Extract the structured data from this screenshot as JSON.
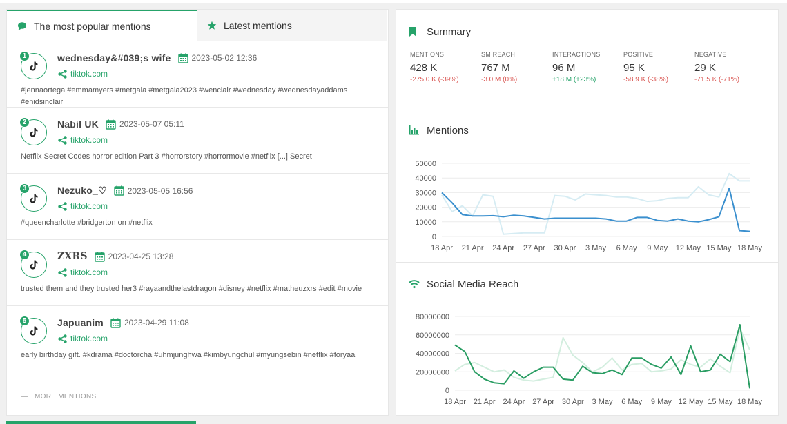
{
  "tabs": [
    {
      "label": "The most popular mentions",
      "active": true
    },
    {
      "label": "Latest mentions",
      "active": false
    }
  ],
  "mentions": [
    {
      "rank": "1",
      "author": "wednesday&#039;s wife",
      "date": "2023-05-02 12:36",
      "source": "tiktok.com",
      "text": "#jennaortega #emmamyers #metgala #metgala2023 #wenclair #wednesday #wednesdayaddams #enidsinclair"
    },
    {
      "rank": "2",
      "author": "Nabil  UK",
      "date": "2023-05-07 05:11",
      "source": "tiktok.com",
      "text": "Netflix Secret Codes horror edition Part 3 #horrorstory #horrormovie #netflix [...] Secret"
    },
    {
      "rank": "3",
      "author": "Nezuko_♡",
      "date": "2023-05-05 16:56",
      "source": "tiktok.com",
      "text": "#queencharlotte #bridgerton on #netflix"
    },
    {
      "rank": "4",
      "author": "ZXRS",
      "date": "2023-04-25 13:28",
      "source": "tiktok.com",
      "text": "trusted them and they trusted her3 #rayaandthelastdragon #disney #netflix #matheuzxrs #edit #movie"
    },
    {
      "rank": "5",
      "author": "Japuanim",
      "date": "2023-04-29 11:08",
      "source": "tiktok.com",
      "text": "early birthday gift. #kdrama #doctorcha #uhmjunghwa #kimbyungchul #myungsebin #netflix #foryaa"
    }
  ],
  "more_label": "MORE MENTIONS",
  "summary": {
    "title": "Summary",
    "metrics": [
      {
        "label": "MENTIONS",
        "value": "428 K",
        "delta": "-275.0 K  (-39%)",
        "positive": false
      },
      {
        "label": "SM REACH",
        "value": "767 M",
        "delta": "-3.0 M  (0%)",
        "positive": false
      },
      {
        "label": "INTERACTIONS",
        "value": "96 M",
        "delta": "+18 M  (+23%)",
        "positive": true
      },
      {
        "label": "POSITIVE",
        "value": "95 K",
        "delta": "-58.9 K  (-38%)",
        "positive": false
      },
      {
        "label": "NEGATIVE",
        "value": "29 K",
        "delta": "-71.5 K  (-71%)",
        "positive": false
      }
    ]
  },
  "colors": {
    "accent": "#26a36a",
    "mentions_line": "#3a8fce",
    "mentions_prev": "#d6ecf3",
    "reach_line": "#2a9d63",
    "reach_prev": "#d3eedf"
  },
  "chart_data": [
    {
      "type": "line",
      "title": "Mentions",
      "categories": [
        "18 Apr",
        "19 Apr",
        "20 Apr",
        "21 Apr",
        "22 Apr",
        "23 Apr",
        "24 Apr",
        "25 Apr",
        "26 Apr",
        "27 Apr",
        "28 Apr",
        "29 Apr",
        "30 Apr",
        "1 May",
        "2 May",
        "3 May",
        "4 May",
        "5 May",
        "6 May",
        "7 May",
        "8 May",
        "9 May",
        "10 May",
        "11 May",
        "12 May",
        "13 May",
        "14 May",
        "15 May",
        "16 May",
        "17 May",
        "18 May"
      ],
      "xticks": [
        "18 Apr",
        "21 Apr",
        "24 Apr",
        "27 Apr",
        "30 Apr",
        "3 May",
        "6 May",
        "9 May",
        "12 May",
        "15 May",
        "18 May"
      ],
      "yticks": [
        0,
        10000,
        20000,
        30000,
        40000,
        50000
      ],
      "ylim": [
        0,
        50000
      ],
      "series": [
        {
          "values": [
            30000,
            23000,
            15000,
            14000,
            14000,
            14200,
            13500,
            14500,
            14000,
            13000,
            12000,
            12500,
            12500,
            12500,
            12500,
            12500,
            12000,
            10500,
            10500,
            13000,
            13000,
            11000,
            10500,
            12000,
            10500,
            10000,
            11500,
            13500,
            33000,
            4000,
            3500
          ]
        },
        {
          "values": [
            28500,
            17000,
            21000,
            14000,
            28500,
            27500,
            1500,
            2000,
            2500,
            2500,
            2500,
            28000,
            27500,
            25000,
            29000,
            28500,
            28000,
            27000,
            27000,
            26000,
            24000,
            24500,
            26000,
            26500,
            26500,
            34000,
            28500,
            27000,
            43000,
            38000,
            38000
          ]
        }
      ]
    },
    {
      "type": "line",
      "title": "Social Media Reach",
      "categories": [
        "18 Apr",
        "19 Apr",
        "20 Apr",
        "21 Apr",
        "22 Apr",
        "23 Apr",
        "24 Apr",
        "25 Apr",
        "26 Apr",
        "27 Apr",
        "28 Apr",
        "29 Apr",
        "30 Apr",
        "1 May",
        "2 May",
        "3 May",
        "4 May",
        "5 May",
        "6 May",
        "7 May",
        "8 May",
        "9 May",
        "10 May",
        "11 May",
        "12 May",
        "13 May",
        "14 May",
        "15 May",
        "16 May",
        "17 May",
        "18 May"
      ],
      "xticks": [
        "18 Apr",
        "21 Apr",
        "24 Apr",
        "27 Apr",
        "30 Apr",
        "3 May",
        "6 May",
        "9 May",
        "12 May",
        "15 May",
        "18 May"
      ],
      "yticks": [
        0,
        20000000,
        40000000,
        60000000,
        80000000
      ],
      "ylim": [
        0,
        80000000
      ],
      "series": [
        {
          "values": [
            49000000,
            42000000,
            20000000,
            12000000,
            8000000,
            7000000,
            21000000,
            13000000,
            20000000,
            25000000,
            25000000,
            12000000,
            11000000,
            26000000,
            19000000,
            18000000,
            22000000,
            17000000,
            35000000,
            35000000,
            28000000,
            24000000,
            36000000,
            17000000,
            48000000,
            20000000,
            22000000,
            39000000,
            31000000,
            71000000,
            2000000
          ]
        },
        {
          "values": [
            21000000,
            28000000,
            30000000,
            25000000,
            20000000,
            22000000,
            14000000,
            11000000,
            10000000,
            12000000,
            14000000,
            57000000,
            38000000,
            30000000,
            20000000,
            25000000,
            35000000,
            22000000,
            28000000,
            29000000,
            20000000,
            21000000,
            23000000,
            33000000,
            28000000,
            25000000,
            34000000,
            26000000,
            19000000,
            67000000,
            44000000
          ]
        }
      ]
    }
  ]
}
